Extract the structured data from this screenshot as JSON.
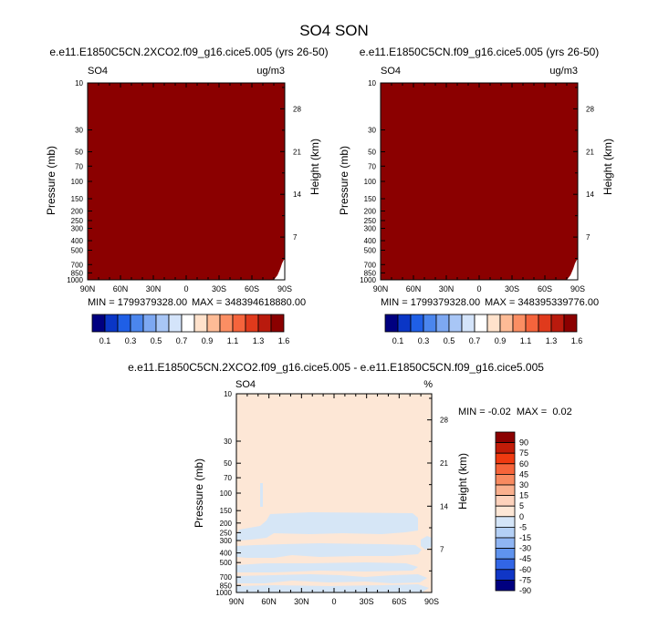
{
  "figure": {
    "title": "SO4 SON"
  },
  "chart_data": [
    {
      "type": "heatmap",
      "title": "e.e11.E1850C5CN.2XCO2.f09_g16.cice5.005 (yrs 26-50)",
      "left_label": "SO4",
      "right_label": "ug/m3",
      "ylabel": "Pressure (mb)",
      "y2label": "Height (km)",
      "x_ticks": [
        "90N",
        "60N",
        "30N",
        "0",
        "30S",
        "60S",
        "90S"
      ],
      "y_ticks": [
        "10",
        "30",
        "50",
        "70",
        "100",
        "150",
        "200",
        "250",
        "300",
        "400",
        "500",
        "700",
        "850",
        "1000"
      ],
      "y2_ticks": [
        "28",
        "21",
        "14",
        "7"
      ],
      "min_text": "MIN = 1799379328.00",
      "max_text": "MAX = 348394618880.00",
      "fill_color": "#8b0000",
      "colorbar_labels": [
        "0.1",
        "0.3",
        "0.5",
        "0.7",
        "0.9",
        "1.1",
        "1.3",
        "1.6"
      ]
    },
    {
      "type": "heatmap",
      "title": "e.e11.E1850C5CN.f09_g16.cice5.005 (yrs 26-50)",
      "left_label": "SO4",
      "right_label": "ug/m3",
      "ylabel": "Pressure (mb)",
      "y2label": "Height (km)",
      "x_ticks": [
        "90N",
        "60N",
        "30N",
        "0",
        "30S",
        "60S",
        "90S"
      ],
      "y_ticks": [
        "10",
        "30",
        "50",
        "70",
        "100",
        "150",
        "200",
        "250",
        "300",
        "400",
        "500",
        "700",
        "850",
        "1000"
      ],
      "y2_ticks": [
        "28",
        "21",
        "14",
        "7"
      ],
      "min_text": "MIN = 1799379328.00",
      "max_text": "MAX = 348395339776.00",
      "fill_color": "#8b0000",
      "colorbar_labels": [
        "0.1",
        "0.3",
        "0.5",
        "0.7",
        "0.9",
        "1.1",
        "1.3",
        "1.6"
      ]
    },
    {
      "type": "heatmap",
      "title": "e.e11.E1850C5CN.2XCO2.f09_g16.cice5.005 - e.e11.E1850C5CN.f09_g16.cice5.005",
      "left_label": "SO4",
      "right_label": "%",
      "ylabel": "Pressure (mb)",
      "y2label": "Height (km)",
      "x_ticks": [
        "90N",
        "60N",
        "30N",
        "0",
        "30S",
        "60S",
        "90S"
      ],
      "y_ticks": [
        "10",
        "30",
        "50",
        "70",
        "100",
        "150",
        "200",
        "250",
        "300",
        "400",
        "500",
        "700",
        "850",
        "1000"
      ],
      "y2_ticks": [
        "28",
        "21",
        "14",
        "7"
      ],
      "min_max_text": "MIN = -0.02  MAX =  0.02",
      "fill_color": "#fde7d6",
      "colorbar_labels": [
        "90",
        "75",
        "60",
        "45",
        "30",
        "15",
        "5",
        "0",
        "-5",
        "-15",
        "-30",
        "-45",
        "-60",
        "-75",
        "-90"
      ]
    }
  ],
  "colors": {
    "seq_colorbar": [
      "#000080",
      "#0a36c6",
      "#1f5fe6",
      "#4b86ee",
      "#7da8f2",
      "#a8c6f6",
      "#d4e4fa",
      "#ffffff",
      "#ffe2cc",
      "#fdbb96",
      "#fb8e63",
      "#f5643c",
      "#e03a1c",
      "#b91a0d",
      "#8b0000"
    ],
    "diff_colorbar": [
      "#8b0000",
      "#c21c08",
      "#f03a10",
      "#f6643a",
      "#f88a60",
      "#fab08e",
      "#fdd2bc",
      "#fde7d6",
      "#d4e5f8",
      "#b4d0f6",
      "#8fb5f3",
      "#5f93ee",
      "#3266e6",
      "#1036c6",
      "#000080"
    ],
    "diff_patch": "#d6e6f6"
  }
}
